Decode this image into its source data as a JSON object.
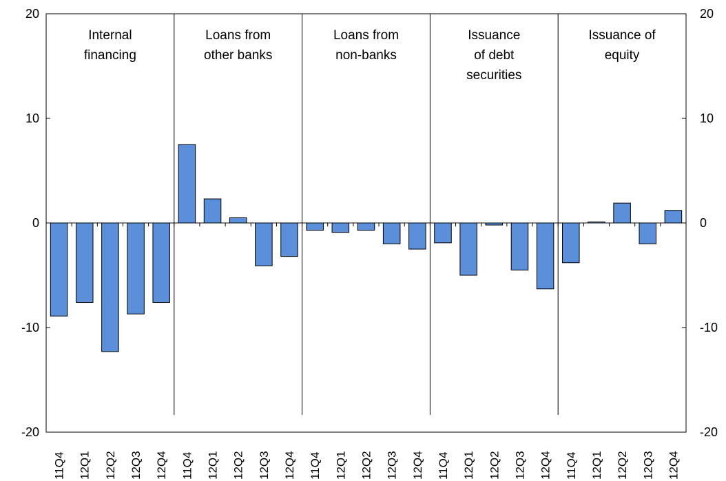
{
  "chart_data": {
    "type": "bar",
    "ylim": [
      -20,
      20
    ],
    "yticks": [
      -20,
      -10,
      0,
      10,
      20
    ],
    "y_axis_left_labels": [
      "-20",
      "-10",
      "0",
      "10",
      "20"
    ],
    "y_axis_right_labels": [
      "-20",
      "-10",
      "0",
      "10",
      "20"
    ],
    "bar_color": "#5B8FD9",
    "bar_outline_color": "#000000",
    "grid": false,
    "legend": "none",
    "panels": [
      {
        "label_lines": [
          "Internal",
          "financing"
        ],
        "categories": [
          "11Q4",
          "12Q1",
          "12Q2",
          "12Q3",
          "12Q4"
        ],
        "values": [
          -8.9,
          -7.6,
          -12.3,
          -8.7,
          -7.6
        ]
      },
      {
        "label_lines": [
          "Loans from",
          "other banks"
        ],
        "categories": [
          "11Q4",
          "12Q1",
          "12Q2",
          "12Q3",
          "12Q4"
        ],
        "values": [
          7.5,
          2.3,
          0.5,
          -4.1,
          -3.2
        ]
      },
      {
        "label_lines": [
          "Loans from",
          "non-banks"
        ],
        "categories": [
          "11Q4",
          "12Q1",
          "12Q2",
          "12Q3",
          "12Q4"
        ],
        "values": [
          -0.7,
          -0.9,
          -0.7,
          -2.0,
          -2.5
        ]
      },
      {
        "label_lines": [
          "Issuance",
          "of debt",
          "securities"
        ],
        "categories": [
          "11Q4",
          "12Q1",
          "12Q2",
          "12Q3",
          "12Q4"
        ],
        "values": [
          -1.9,
          -5.0,
          -0.2,
          -4.5,
          -6.3
        ]
      },
      {
        "label_lines": [
          "Issuance of",
          "equity"
        ],
        "categories": [
          "11Q4",
          "12Q1",
          "12Q2",
          "12Q3",
          "12Q4"
        ],
        "values": [
          -3.8,
          0.1,
          1.9,
          -2.0,
          1.2
        ]
      }
    ]
  }
}
